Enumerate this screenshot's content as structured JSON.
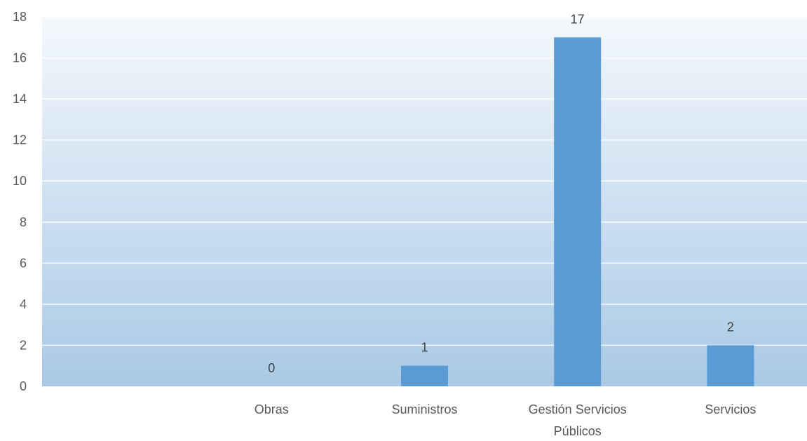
{
  "chart_data": {
    "type": "bar",
    "categories": [
      "",
      "Obras",
      "Suministros",
      "Gestión Servicios Públicos",
      "Servicios"
    ],
    "category_lines": [
      [
        ""
      ],
      [
        "Obras"
      ],
      [
        "Suministros"
      ],
      [
        "Gestión Servicios",
        "Públicos"
      ],
      [
        "Servicios"
      ]
    ],
    "values": [
      null,
      0,
      1,
      17,
      2
    ],
    "data_labels": [
      "",
      "0",
      "1",
      "17",
      "2"
    ],
    "ylim": [
      0,
      18
    ],
    "yticks": [
      "0",
      "2",
      "4",
      "6",
      "8",
      "10",
      "12",
      "14",
      "16",
      "18"
    ],
    "title": "",
    "xlabel": "",
    "ylabel": "",
    "grid": true,
    "legend": "none",
    "colors": {
      "bar": "#5b9bd5",
      "plot_bg_top": "#f4f8fc",
      "plot_bg_bottom": "#a9c9e6",
      "gridline": "#ffffff"
    }
  }
}
